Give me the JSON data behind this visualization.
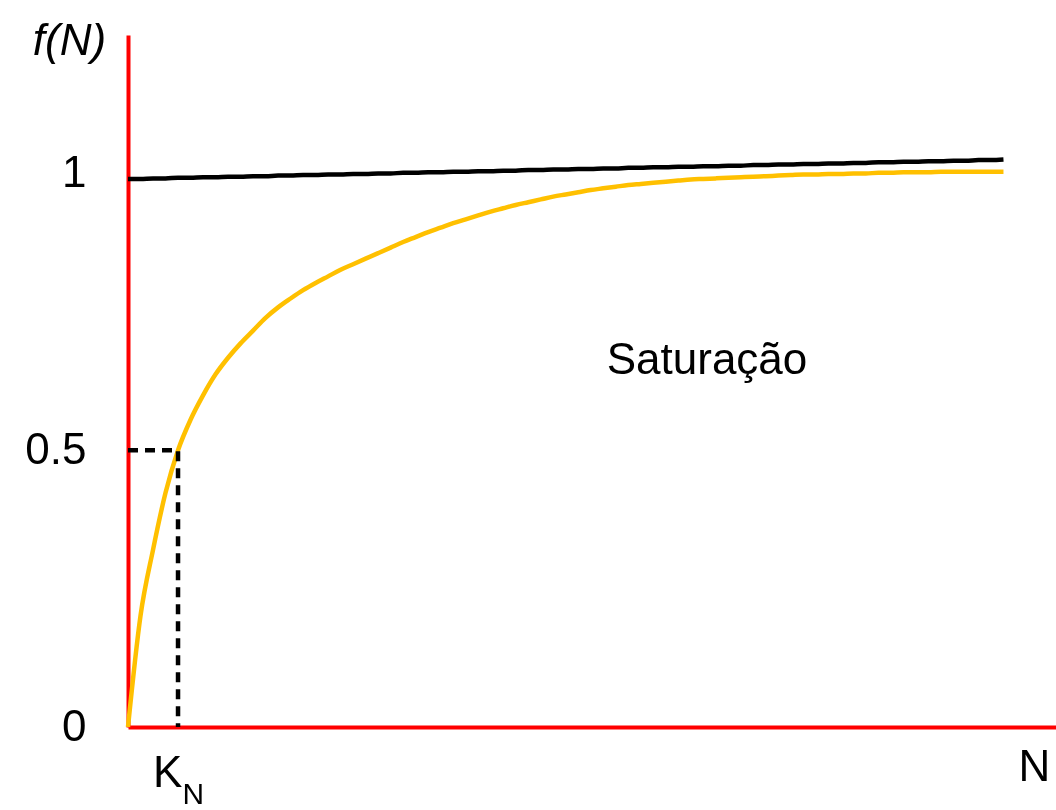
{
  "chart_data": {
    "type": "line",
    "ylabel": "f(N)",
    "xlabel": "N",
    "annotations": [
      "Saturação"
    ],
    "categories": [
      null,
      null,
      null,
      null,
      "K$_{N}$",
      null,
      null,
      null,
      null,
      null,
      null,
      null,
      null,
      null,
      null,
      null,
      null,
      null,
      null,
      null,
      null,
      null,
      null,
      null,
      null,
      null,
      null,
      null,
      null,
      null,
      null,
      null,
      null,
      null,
      null,
      null,
      null,
      null,
      null,
      null,
      null,
      null,
      null,
      null,
      null,
      null,
      null,
      null,
      null,
      null,
      null,
      null,
      null,
      null,
      null,
      null,
      null,
      null,
      null,
      null,
      null,
      null,
      null,
      null,
      null,
      null,
      null,
      null,
      null,
      null,
      null
    ],
    "ylim": [
      0,
      1.25
    ],
    "yticks": [
      0,
      0.5,
      1
    ],
    "series": [
      {
        "color": "#000000",
        "values": [
          0.99,
          0.99,
          0.991,
          0.991,
          0.992,
          0.992,
          0.993,
          0.993,
          0.994,
          0.994,
          0.995,
          0.995,
          0.996,
          0.996,
          0.997,
          0.997,
          0.998,
          0.998,
          0.999,
          0.999,
          1.0,
          1.0,
          1.001,
          1.001,
          1.002,
          1.002,
          1.003,
          1.003,
          1.004,
          1.004,
          1.005,
          1.005,
          1.006,
          1.006,
          1.007,
          1.007,
          1.008,
          1.008,
          1.009,
          1.009,
          1.01,
          1.01,
          1.011,
          1.011,
          1.012,
          1.012,
          1.013,
          1.013,
          1.014,
          1.014,
          1.015,
          1.015,
          1.016,
          1.016,
          1.017,
          1.017,
          1.018,
          1.018,
          1.019,
          1.019,
          1.02,
          1.02,
          1.021,
          1.021,
          1.022,
          1.022,
          1.023,
          1.023,
          1.024,
          1.024,
          1.025
        ]
      },
      {
        "color": "#ffc000",
        "values": [
          0,
          0.201,
          0.32,
          0.423,
          0.5,
          0.555,
          0.599,
          0.637,
          0.667,
          0.693,
          0.716,
          0.739,
          0.758,
          0.774,
          0.789,
          0.802,
          0.814,
          0.826,
          0.836,
          0.846,
          0.856,
          0.866,
          0.876,
          0.885,
          0.894,
          0.902,
          0.91,
          0.917,
          0.924,
          0.931,
          0.937,
          0.943,
          0.948,
          0.953,
          0.958,
          0.962,
          0.966,
          0.97,
          0.973,
          0.976,
          0.979,
          0.981,
          0.983,
          0.985,
          0.987,
          0.989,
          0.99,
          0.991,
          0.992,
          0.993,
          0.994,
          0.995,
          0.996,
          0.997,
          0.998,
          0.998,
          0.999,
          0.999,
          1.0,
          1.0,
          1.001,
          1.001,
          1.002,
          1.002,
          1.002,
          1.003,
          1.003,
          1.003,
          1.003,
          1.003,
          1.003
        ]
      },
      {
        "type": "step",
        "color": "#000000",
        "line_style": "dashed",
        "values": [
          0.5,
          0.5,
          0.5,
          0.5,
          0,
          null,
          null,
          null,
          null,
          null,
          null,
          null,
          null,
          null,
          null,
          null,
          null,
          null,
          null,
          null,
          null,
          null,
          null,
          null,
          null,
          null,
          null,
          null,
          null,
          null,
          null,
          null,
          null,
          null,
          null,
          null,
          null,
          null,
          null,
          null,
          null,
          null,
          null,
          null,
          null,
          null,
          null,
          null,
          null,
          null,
          null,
          null,
          null,
          null,
          null,
          null,
          null,
          null,
          null,
          null,
          null,
          null,
          null,
          null,
          null,
          null,
          null,
          null,
          null,
          null,
          null
        ]
      }
    ]
  }
}
